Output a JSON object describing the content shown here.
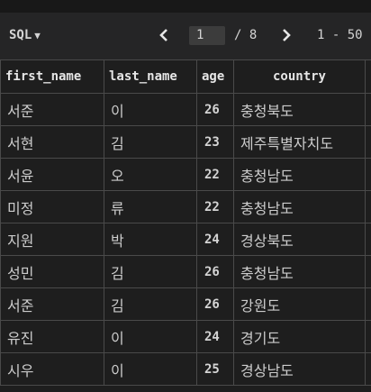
{
  "toolbar": {
    "mode_label": "SQL",
    "current_page": "1",
    "total_pages_text": "/ 8",
    "row_range": "1 - 50"
  },
  "table": {
    "columns": [
      "first_name",
      "last_name",
      "age",
      "country"
    ],
    "rows": [
      [
        "서준",
        "이",
        "26",
        "충청북도"
      ],
      [
        "서현",
        "김",
        "23",
        "제주특별자치도"
      ],
      [
        "서윤",
        "오",
        "22",
        "충청남도"
      ],
      [
        "미정",
        "류",
        "22",
        "충청남도"
      ],
      [
        "지원",
        "박",
        "24",
        "경상북도"
      ],
      [
        "성민",
        "김",
        "26",
        "충청남도"
      ],
      [
        "서준",
        "김",
        "26",
        "강원도"
      ],
      [
        "유진",
        "이",
        "24",
        "경기도"
      ],
      [
        "시우",
        "이",
        "25",
        "경상남도"
      ]
    ]
  }
}
